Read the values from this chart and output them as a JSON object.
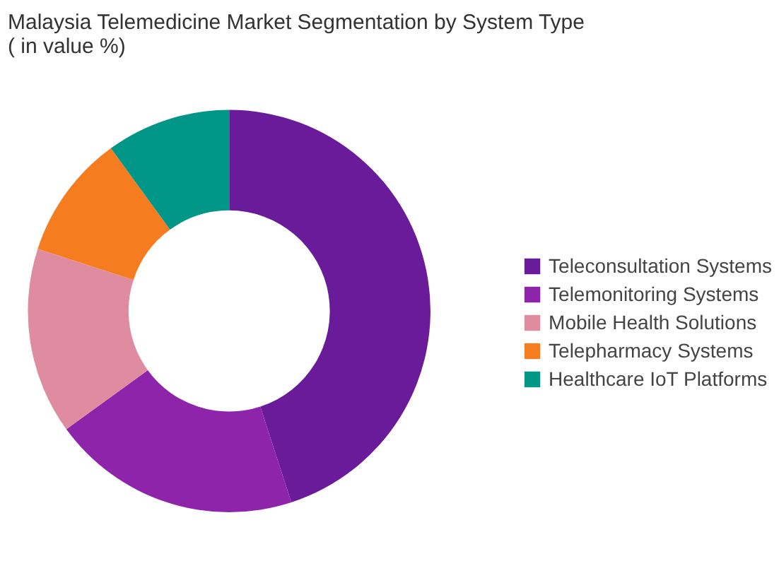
{
  "chart_data": {
    "type": "donut",
    "title": "Malaysia Telemedicine Market Segmentation by System Type ( in value %)",
    "categories": [
      "Teleconsultation Systems",
      "Telemonitoring Systems",
      "Mobile Health Solutions",
      "Telepharmacy Systems",
      "Healthcare IoT Platforms"
    ],
    "values": [
      45,
      20,
      15,
      10,
      10
    ],
    "colors": [
      "#6a1b9a",
      "#8e24aa",
      "#e08ca0",
      "#f57c1f",
      "#009688"
    ],
    "legend": "right"
  }
}
